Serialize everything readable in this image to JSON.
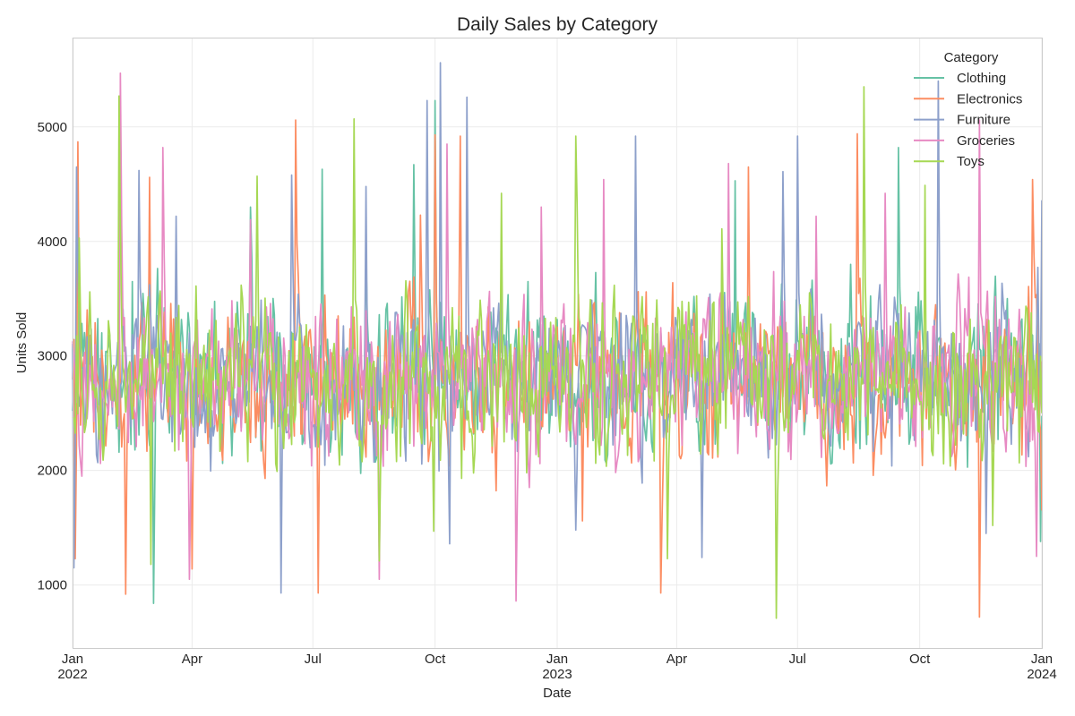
{
  "chart_data": {
    "type": "line",
    "title": "Daily Sales by Category",
    "xlabel": "Date",
    "ylabel": "Units Sold",
    "x_range": [
      "2022-01-01",
      "2024-01-01"
    ],
    "ylim": [
      450,
      5780
    ],
    "y_ticks": [
      1000,
      2000,
      3000,
      4000,
      5000
    ],
    "x_ticks": [
      {
        "date": "2022-01-01",
        "label": "Jan",
        "sub": "2022"
      },
      {
        "date": "2022-04-01",
        "label": "Apr",
        "sub": ""
      },
      {
        "date": "2022-07-01",
        "label": "Jul",
        "sub": ""
      },
      {
        "date": "2022-10-01",
        "label": "Oct",
        "sub": ""
      },
      {
        "date": "2023-01-01",
        "label": "Jan",
        "sub": "2023"
      },
      {
        "date": "2023-04-01",
        "label": "Apr",
        "sub": ""
      },
      {
        "date": "2023-07-01",
        "label": "Jul",
        "sub": ""
      },
      {
        "date": "2023-10-01",
        "label": "Oct",
        "sub": ""
      },
      {
        "date": "2024-01-01",
        "label": "Jan",
        "sub": "2024"
      }
    ],
    "grid": true,
    "legend": {
      "title": "Category",
      "position": "top-right"
    },
    "series": [
      {
        "name": "Clothing",
        "color": "#66c2a5",
        "x": [
          "2022-01-01",
          "2022-02-15",
          "2022-03-03",
          "2022-05-15",
          "2022-07-08",
          "2022-08-10",
          "2022-09-15",
          "2022-10-01",
          "2022-12-10",
          "2023-02-15",
          "2023-05-15",
          "2023-08-10",
          "2023-09-15",
          "2023-12-31"
        ],
        "values": [
          2520,
          3650,
          840,
          4300,
          4630,
          3900,
          4670,
          5230,
          3650,
          3300,
          4530,
          3800,
          4820,
          1380
        ]
      },
      {
        "name": "Electronics",
        "color": "#fc8d62",
        "x": [
          "2022-01-03",
          "2022-01-05",
          "2022-02-10",
          "2022-02-28",
          "2022-04-01",
          "2022-06-18",
          "2022-07-05",
          "2022-09-20",
          "2022-10-01",
          "2022-10-20",
          "2023-01-20",
          "2023-03-20",
          "2023-05-25",
          "2023-08-15",
          "2023-11-15",
          "2023-12-25",
          "2024-01-01"
        ],
        "values": [
          1230,
          4870,
          920,
          4560,
          1140,
          5060,
          930,
          4230,
          4930,
          4920,
          1560,
          930,
          4650,
          4940,
          720,
          4540,
          1650
        ]
      },
      {
        "name": "Furniture",
        "color": "#8da0cb",
        "x": [
          "2022-01-02",
          "2022-01-04",
          "2022-02-20",
          "2022-03-20",
          "2022-06-07",
          "2022-06-15",
          "2022-08-10",
          "2022-09-25",
          "2022-10-05",
          "2022-10-12",
          "2022-10-25",
          "2023-01-15",
          "2023-03-01",
          "2023-04-20",
          "2023-06-20",
          "2023-07-01",
          "2023-10-15",
          "2023-11-20",
          "2024-01-01"
        ],
        "values": [
          1150,
          4650,
          4620,
          4220,
          930,
          4580,
          4480,
          5230,
          5560,
          1360,
          5260,
          1480,
          4920,
          1240,
          4610,
          4920,
          5400,
          1450,
          4360
        ]
      },
      {
        "name": "Groceries",
        "color": "#e78ac3",
        "x": [
          "2022-01-08",
          "2022-02-06",
          "2022-03-10",
          "2022-03-30",
          "2022-05-15",
          "2022-08-20",
          "2022-10-10",
          "2022-12-01",
          "2022-12-20",
          "2023-02-05",
          "2023-05-10",
          "2023-07-15",
          "2023-09-05",
          "2023-11-15",
          "2023-12-28"
        ],
        "values": [
          1950,
          5470,
          4820,
          1050,
          4190,
          1050,
          4850,
          860,
          4300,
          4540,
          4680,
          4220,
          4420,
          5060,
          1250
        ]
      },
      {
        "name": "Toys",
        "color": "#a6d854",
        "x": [
          "2022-01-06",
          "2022-02-05",
          "2022-03-01",
          "2022-05-20",
          "2022-08-01",
          "2022-08-20",
          "2022-09-30",
          "2022-11-20",
          "2023-01-15",
          "2023-03-25",
          "2023-05-05",
          "2023-06-15",
          "2023-08-20",
          "2023-10-05",
          "2023-11-25",
          "2024-01-01"
        ],
        "values": [
          4030,
          5270,
          1180,
          4570,
          5070,
          1210,
          1470,
          4420,
          4920,
          1230,
          4110,
          710,
          5350,
          4490,
          1520,
          2500
        ]
      }
    ]
  }
}
